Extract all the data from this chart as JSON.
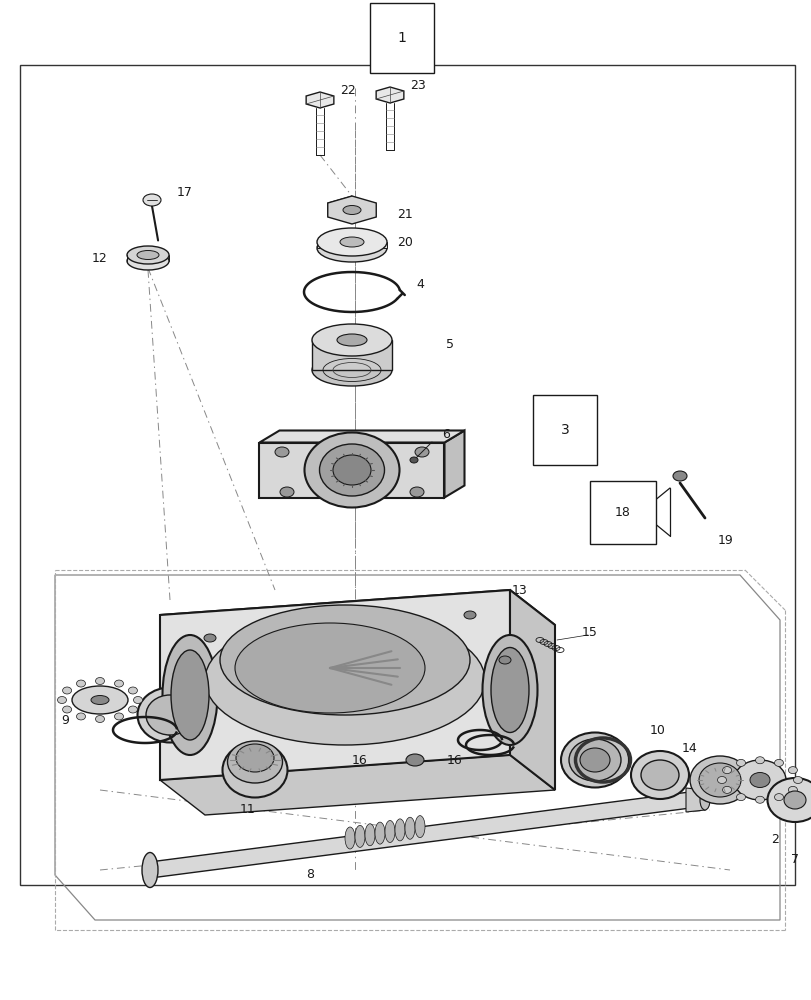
{
  "bg_color": "#ffffff",
  "lc": "#1a1a1a",
  "lc_mid": "#444444",
  "lc_light": "#888888",
  "fig_width": 8.12,
  "fig_height": 10.0,
  "dpi": 100
}
